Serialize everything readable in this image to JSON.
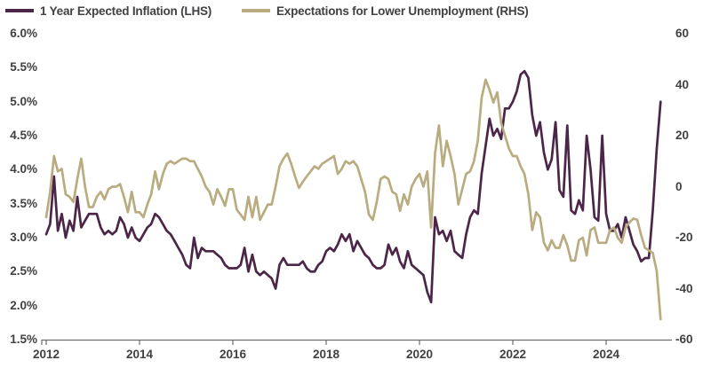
{
  "colors": {
    "background": "#ffffff",
    "text": "#414042",
    "axis_line": "#6d6e71",
    "inflation_line": "#4b2648",
    "unemployment_line": "#b9ac81"
  },
  "chart_data": {
    "type": "line",
    "title": "",
    "frequency": "monthly",
    "x_start": "2012-01",
    "x_end": "2025-03",
    "x_axis": {
      "tick_labels": [
        "2012",
        "2014",
        "2016",
        "2018",
        "2020",
        "2022",
        "2024"
      ],
      "tick_values": [
        2012,
        2014,
        2016,
        2018,
        2020,
        2022,
        2024
      ],
      "range": [
        2012,
        2025.4
      ]
    },
    "left_axis": {
      "title": "",
      "unit": "%",
      "tick_labels": [
        "6.0%",
        "5.5%",
        "5.0%",
        "4.5%",
        "4.0%",
        "3.5%",
        "3.0%",
        "2.5%",
        "2.0%",
        "1.5%"
      ],
      "tick_values": [
        6.0,
        5.5,
        5.0,
        4.5,
        4.0,
        3.5,
        3.0,
        2.5,
        2.0,
        1.5
      ],
      "range": [
        1.5,
        6.0
      ]
    },
    "right_axis": {
      "title": "",
      "tick_labels": [
        "60",
        "40",
        "20",
        "0",
        "-20",
        "-40",
        "-60"
      ],
      "tick_values": [
        60,
        40,
        20,
        0,
        -20,
        -40,
        -60
      ],
      "range": [
        -60,
        60
      ]
    },
    "grid": false,
    "legend_position": "top-left",
    "series": [
      {
        "name": "inflation",
        "legend_label": "1 Year Expected Inflation (LHS)",
        "axis": "left",
        "color": "#4b2648",
        "unit": "%",
        "values": [
          3.05,
          3.2,
          3.9,
          3.1,
          3.35,
          3.0,
          3.25,
          3.1,
          3.6,
          3.15,
          3.25,
          3.35,
          3.35,
          3.35,
          3.15,
          3.05,
          3.1,
          3.05,
          3.1,
          3.3,
          3.2,
          3.0,
          3.15,
          3.0,
          2.95,
          3.05,
          3.15,
          3.2,
          3.35,
          3.3,
          3.2,
          3.1,
          3.05,
          2.95,
          2.85,
          2.75,
          2.6,
          2.55,
          3.0,
          2.7,
          2.85,
          2.8,
          2.8,
          2.8,
          2.75,
          2.7,
          2.6,
          2.55,
          2.55,
          2.55,
          2.6,
          2.85,
          2.5,
          2.75,
          2.5,
          2.45,
          2.5,
          2.45,
          2.4,
          2.25,
          2.6,
          2.7,
          2.6,
          2.6,
          2.6,
          2.6,
          2.65,
          2.55,
          2.5,
          2.5,
          2.6,
          2.65,
          2.8,
          2.85,
          2.8,
          2.9,
          3.05,
          2.95,
          3.05,
          2.8,
          2.95,
          2.85,
          2.75,
          2.7,
          2.6,
          2.55,
          2.55,
          2.6,
          2.9,
          2.75,
          2.85,
          2.65,
          2.55,
          2.8,
          2.6,
          2.55,
          2.5,
          2.45,
          2.2,
          2.05,
          3.3,
          3.05,
          3.1,
          2.95,
          3.1,
          2.8,
          2.75,
          2.7,
          3.05,
          3.3,
          3.4,
          3.35,
          3.95,
          4.35,
          4.75,
          4.5,
          4.6,
          4.45,
          4.9,
          4.9,
          5.0,
          5.15,
          5.4,
          5.45,
          5.35,
          4.8,
          4.5,
          4.7,
          4.25,
          4.0,
          4.15,
          4.7,
          3.7,
          3.6,
          4.65,
          3.4,
          3.35,
          3.55,
          3.4,
          4.5,
          4.0,
          3.3,
          3.25,
          4.5,
          3.35,
          3.1,
          3.1,
          3.2,
          3.0,
          3.3,
          3.1,
          2.9,
          2.8,
          2.65,
          2.7,
          2.7,
          3.4,
          4.3,
          5.0
        ]
      },
      {
        "name": "unemployment-expectations",
        "legend_label": "Expectations for Lower Unemployment (RHS)",
        "axis": "right",
        "color": "#b9ac81",
        "unit": "index",
        "values": [
          -12,
          -2,
          12,
          6,
          7,
          -3,
          -4,
          -6,
          3,
          11,
          0,
          -8,
          -8,
          -4,
          -2,
          -5,
          -1,
          0,
          0,
          1,
          -4,
          -10,
          -2,
          -10,
          -10,
          -12,
          -7,
          -3,
          6,
          -1,
          5,
          9,
          10,
          9,
          10,
          11,
          11,
          10,
          10,
          7,
          4,
          0,
          -2,
          -7,
          -1,
          -4,
          -7.5,
          -1,
          -1,
          -9,
          -11,
          -13,
          -4,
          -12,
          -4,
          -13,
          -10,
          -7,
          -7,
          0,
          8,
          11,
          13,
          9,
          4,
          -0.5,
          2,
          4,
          6,
          8,
          7,
          9,
          10,
          11,
          12,
          5,
          7,
          10,
          9,
          10,
          8,
          3,
          -2,
          -11,
          -13,
          -6,
          3,
          4,
          3,
          -2,
          -3,
          -9.5,
          -3,
          -7,
          0,
          3,
          5,
          0,
          6,
          -16,
          13,
          24,
          8,
          18,
          12,
          5,
          -7,
          -1,
          5,
          6,
          10,
          18,
          35,
          42,
          38,
          33,
          37,
          25,
          20,
          15,
          12,
          12,
          8,
          5,
          -3,
          -17,
          -10,
          -12,
          -22,
          -25,
          -21,
          -24,
          -24,
          -19,
          -23,
          -29,
          -29,
          -21,
          -20,
          -27,
          -17,
          -16,
          -22,
          -22,
          -22,
          -17,
          -16,
          -20,
          -22,
          -16,
          -14,
          -12.5,
          -13,
          -19,
          -24,
          -25,
          -26,
          -33,
          -52
        ]
      }
    ]
  }
}
